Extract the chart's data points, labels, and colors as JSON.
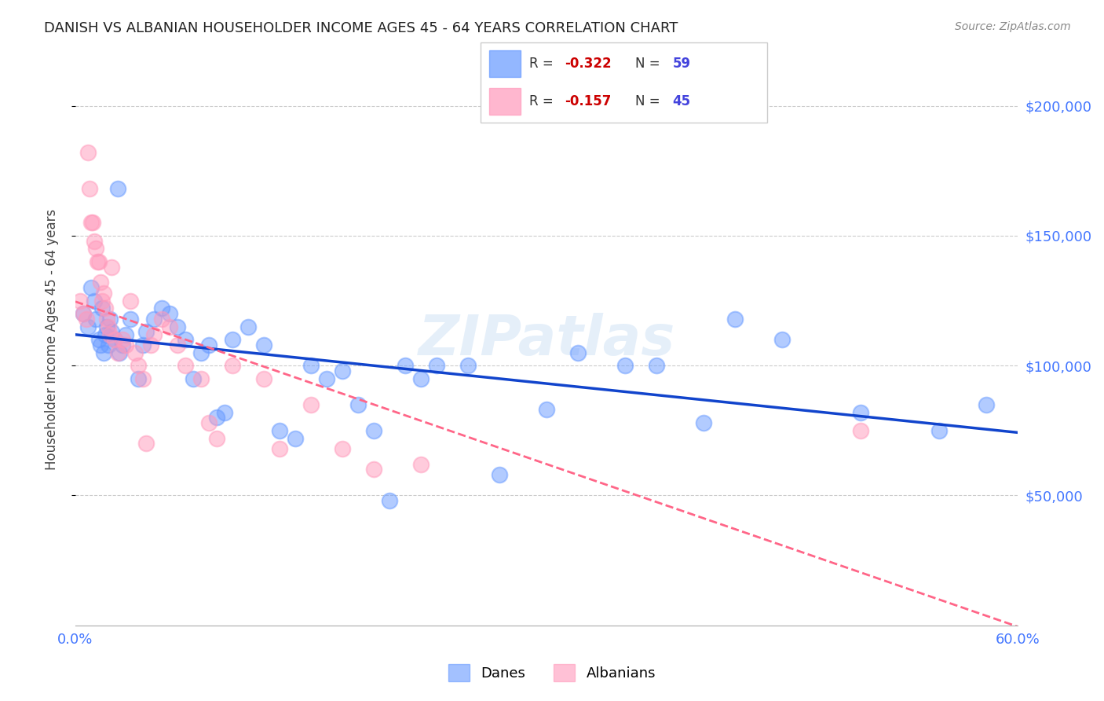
{
  "title": "DANISH VS ALBANIAN HOUSEHOLDER INCOME AGES 45 - 64 YEARS CORRELATION CHART",
  "source": "Source: ZipAtlas.com",
  "ylabel": "Householder Income Ages 45 - 64 years",
  "ytick_values": [
    50000,
    100000,
    150000,
    200000
  ],
  "ymin": 0,
  "ymax": 220000,
  "xmin": 0.0,
  "xmax": 0.6,
  "danes_color": "#6699ff",
  "albanians_color": "#ff99bb",
  "danes_line_color": "#1144cc",
  "albanians_line_color": "#ff6688",
  "watermark": "ZIPatlas",
  "danes_x": [
    0.005,
    0.008,
    0.01,
    0.012,
    0.013,
    0.015,
    0.016,
    0.017,
    0.018,
    0.019,
    0.02,
    0.021,
    0.022,
    0.023,
    0.025,
    0.027,
    0.028,
    0.03,
    0.032,
    0.035,
    0.04,
    0.043,
    0.045,
    0.05,
    0.055,
    0.06,
    0.065,
    0.07,
    0.075,
    0.08,
    0.085,
    0.09,
    0.095,
    0.1,
    0.11,
    0.12,
    0.13,
    0.14,
    0.15,
    0.16,
    0.17,
    0.18,
    0.19,
    0.2,
    0.21,
    0.22,
    0.23,
    0.25,
    0.27,
    0.3,
    0.32,
    0.35,
    0.37,
    0.4,
    0.42,
    0.45,
    0.5,
    0.55,
    0.58
  ],
  "danes_y": [
    120000,
    115000,
    130000,
    125000,
    118000,
    110000,
    108000,
    122000,
    105000,
    112000,
    115000,
    108000,
    118000,
    113000,
    110000,
    168000,
    105000,
    108000,
    112000,
    118000,
    95000,
    108000,
    113000,
    118000,
    122000,
    120000,
    115000,
    110000,
    95000,
    105000,
    108000,
    80000,
    82000,
    110000,
    115000,
    108000,
    75000,
    72000,
    100000,
    95000,
    98000,
    85000,
    75000,
    48000,
    100000,
    95000,
    100000,
    100000,
    58000,
    83000,
    105000,
    100000,
    100000,
    78000,
    118000,
    110000,
    82000,
    75000,
    85000
  ],
  "albanians_x": [
    0.003,
    0.005,
    0.007,
    0.008,
    0.009,
    0.01,
    0.011,
    0.012,
    0.013,
    0.014,
    0.015,
    0.016,
    0.017,
    0.018,
    0.019,
    0.02,
    0.021,
    0.022,
    0.023,
    0.025,
    0.027,
    0.03,
    0.032,
    0.035,
    0.038,
    0.04,
    0.043,
    0.045,
    0.048,
    0.05,
    0.055,
    0.06,
    0.065,
    0.07,
    0.08,
    0.085,
    0.09,
    0.1,
    0.12,
    0.13,
    0.15,
    0.17,
    0.19,
    0.22,
    0.5
  ],
  "albanians_y": [
    125000,
    120000,
    118000,
    182000,
    168000,
    155000,
    155000,
    148000,
    145000,
    140000,
    140000,
    132000,
    125000,
    128000,
    122000,
    118000,
    115000,
    112000,
    138000,
    110000,
    105000,
    110000,
    108000,
    125000,
    105000,
    100000,
    95000,
    70000,
    108000,
    112000,
    118000,
    115000,
    108000,
    100000,
    95000,
    78000,
    72000,
    100000,
    95000,
    68000,
    85000,
    68000,
    60000,
    62000,
    75000
  ]
}
